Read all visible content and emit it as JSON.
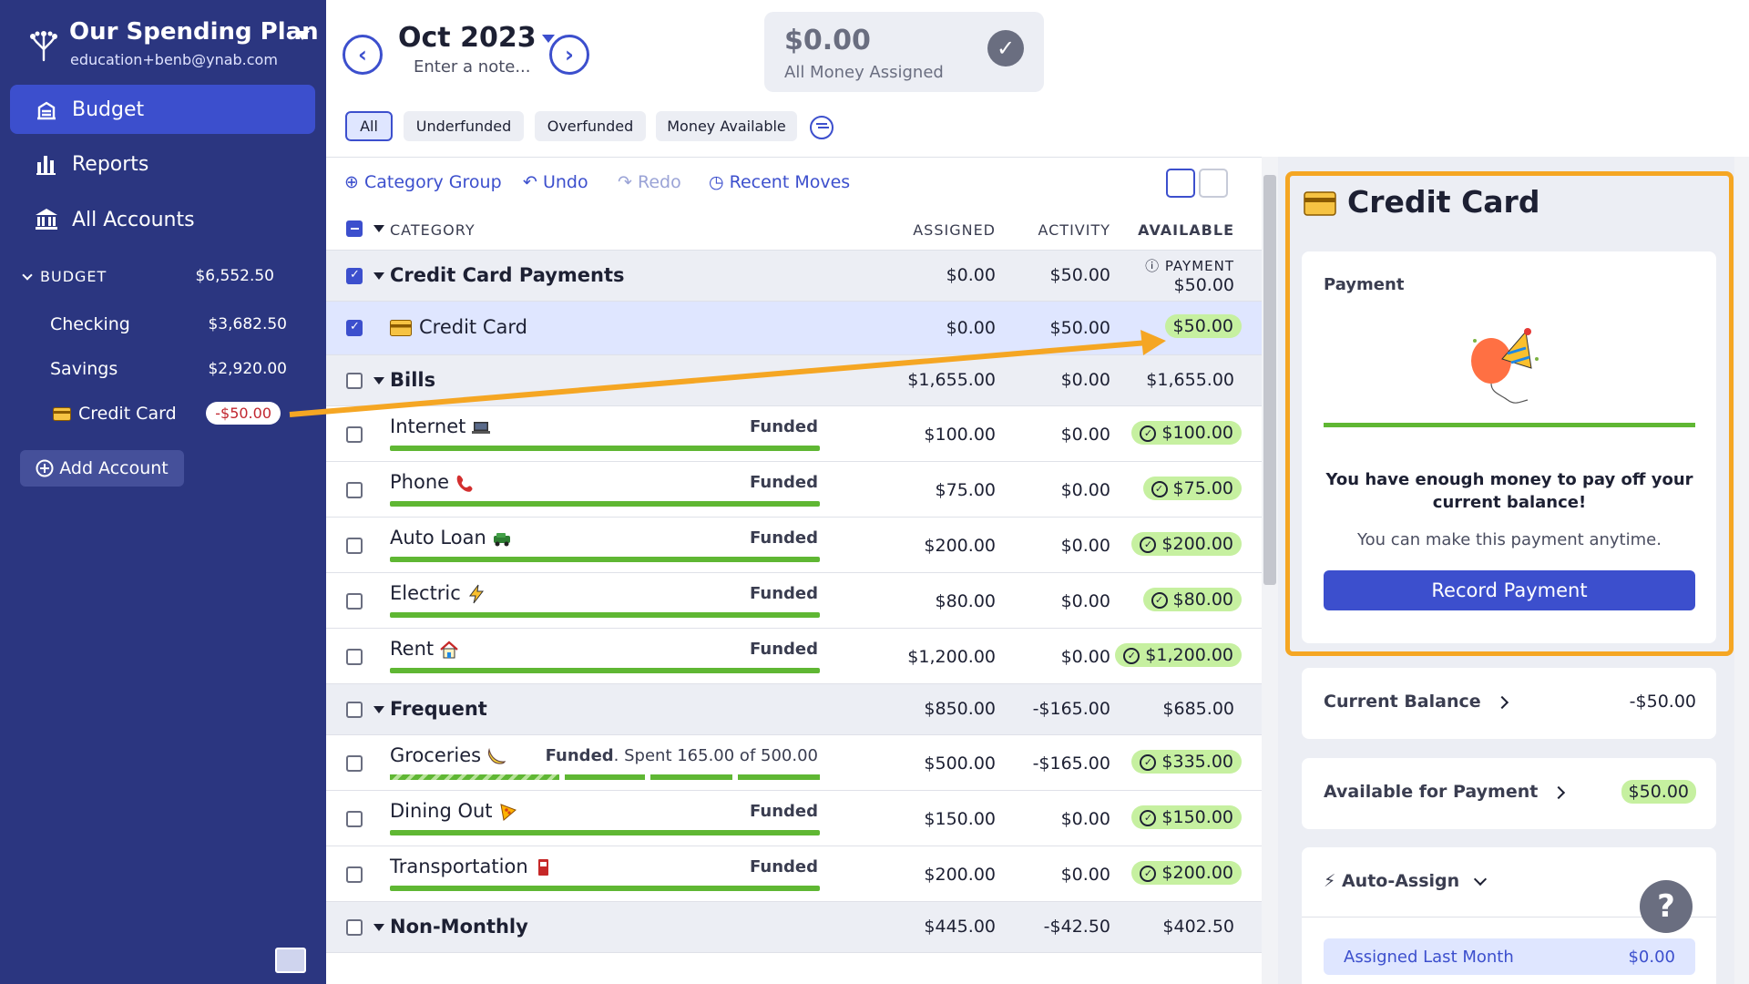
{
  "plan": {
    "name": "Our Spending Plan",
    "email": "education+benb@ynab.com"
  },
  "nav": [
    {
      "label": "Budget",
      "icon": "budget-icon",
      "active": true
    },
    {
      "label": "Reports",
      "icon": "reports-icon",
      "active": false
    },
    {
      "label": "All Accounts",
      "icon": "bank-icon",
      "active": false
    }
  ],
  "budget_section": {
    "label": "BUDGET",
    "total": "$6,552.50"
  },
  "accounts": [
    {
      "name": "Checking",
      "balance": "$3,682.50"
    },
    {
      "name": "Savings",
      "balance": "$2,920.00"
    },
    {
      "name": "Credit Card",
      "balance": "-$50.00",
      "icon": "credit-card-icon"
    }
  ],
  "add_account": "Add Account",
  "header": {
    "month": "Oct 2023",
    "note_placeholder": "Enter a note...",
    "assigned_amount": "$0.00",
    "assigned_label": "All Money Assigned"
  },
  "filters": [
    "All",
    "Underfunded",
    "Overfunded",
    "Money Available"
  ],
  "toolbar": {
    "category_group": "Category Group",
    "undo": "Undo",
    "redo": "Redo",
    "recent_moves": "Recent Moves"
  },
  "columns": {
    "category": "CATEGORY",
    "assigned": "ASSIGNED",
    "activity": "ACTIVITY",
    "available": "AVAILABLE"
  },
  "rows": [
    {
      "type": "group",
      "name": "Credit Card Payments",
      "assigned": "$0.00",
      "activity": "$50.00",
      "payment_label": "PAYMENT",
      "available": "$50.00",
      "checked": true
    },
    {
      "type": "cat",
      "name": "Credit Card",
      "assigned": "$0.00",
      "activity": "$50.00",
      "available": "$50.00",
      "checked": true,
      "selected": true,
      "icon": "credit-card-icon"
    },
    {
      "type": "group",
      "name": "Bills",
      "assigned": "$1,655.00",
      "activity": "$0.00",
      "available": "$1,655.00"
    },
    {
      "type": "cat",
      "name": "Internet",
      "funded": "Funded",
      "assigned": "$100.00",
      "activity": "$0.00",
      "available": "$100.00",
      "icon": "laptop-icon",
      "progress": 1.0
    },
    {
      "type": "cat",
      "name": "Phone",
      "funded": "Funded",
      "assigned": "$75.00",
      "activity": "$0.00",
      "available": "$75.00",
      "icon": "phone-icon",
      "progress": 1.0
    },
    {
      "type": "cat",
      "name": "Auto Loan",
      "funded": "Funded",
      "assigned": "$200.00",
      "activity": "$0.00",
      "available": "$200.00",
      "icon": "car-icon",
      "progress": 1.0
    },
    {
      "type": "cat",
      "name": "Electric",
      "funded": "Funded",
      "assigned": "$80.00",
      "activity": "$0.00",
      "available": "$80.00",
      "icon": "lightning-icon",
      "progress": 1.0
    },
    {
      "type": "cat",
      "name": "Rent",
      "funded": "Funded",
      "assigned": "$1,200.00",
      "activity": "$0.00",
      "available": "$1,200.00",
      "icon": "house-icon",
      "progress": 1.0
    },
    {
      "type": "group",
      "name": "Frequent",
      "assigned": "$850.00",
      "activity": "-$165.00",
      "available": "$685.00"
    },
    {
      "type": "cat",
      "name": "Groceries",
      "funded": "Funded",
      "spent": ". Spent 165.00 of 500.00",
      "assigned": "$500.00",
      "activity": "-$165.00",
      "available": "$335.00",
      "icon": "banana-icon",
      "progress": 0.33
    },
    {
      "type": "cat",
      "name": "Dining Out",
      "funded": "Funded",
      "assigned": "$150.00",
      "activity": "$0.00",
      "available": "$150.00",
      "icon": "pizza-icon",
      "progress": 1.0
    },
    {
      "type": "cat",
      "name": "Transportation",
      "funded": "Funded",
      "assigned": "$200.00",
      "activity": "$0.00",
      "available": "$200.00",
      "icon": "fuel-icon",
      "progress": 1.0
    },
    {
      "type": "group",
      "name": "Non-Monthly",
      "assigned": "$445.00",
      "activity": "-$42.50",
      "available": "$402.50"
    }
  ],
  "inspector": {
    "title": "Credit Card",
    "payment_label": "Payment",
    "enough_message": "You have enough money to pay off your current balance!",
    "anytime": "You can make this payment anytime.",
    "record_button": "Record Payment",
    "current_balance_label": "Current Balance",
    "current_balance": "-$50.00",
    "available_label": "Available for Payment",
    "available_value": "$50.00",
    "auto_assign": "Auto-Assign",
    "assigned_last_month_label": "Assigned Last Month",
    "assigned_last_month": "$0.00"
  },
  "help": "?",
  "colors": {
    "sidebar": "#2b3680",
    "accent": "#3c4fcd",
    "funded_green": "#5fb733",
    "pill_green": "#c6f0a0",
    "highlight": "#f5a623"
  }
}
